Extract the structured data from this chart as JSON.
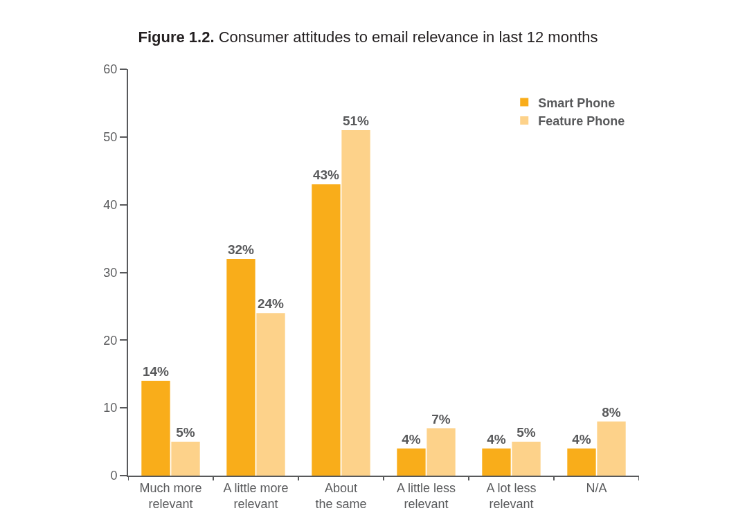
{
  "chart_data": {
    "type": "bar",
    "title": "Figure 1.2. Consumer attitudes to email relevance in last 12 months",
    "categories": [
      "Much more\nrelevant",
      "A little more\nrelevant",
      "About\nthe same",
      "A little less\nrelevant",
      "A lot less\nrelevant",
      "N/A"
    ],
    "series": [
      {
        "name": "Smart Phone",
        "color": "#f9ad1a",
        "values": [
          14,
          32,
          43,
          4,
          4,
          4
        ],
        "value_labels": [
          "14%",
          "32%",
          "43%",
          "4%",
          "4%",
          "4%"
        ]
      },
      {
        "name": "Feature Phone",
        "color": "#fdd28a",
        "values": [
          5,
          24,
          51,
          7,
          5,
          8
        ],
        "value_labels": [
          "5%",
          "24%",
          "51%",
          "7%",
          "5%",
          "8%"
        ]
      }
    ],
    "ylim": [
      0,
      60
    ],
    "yticks": [
      0,
      10,
      20,
      30,
      40,
      50,
      60
    ],
    "legend": "top right"
  }
}
